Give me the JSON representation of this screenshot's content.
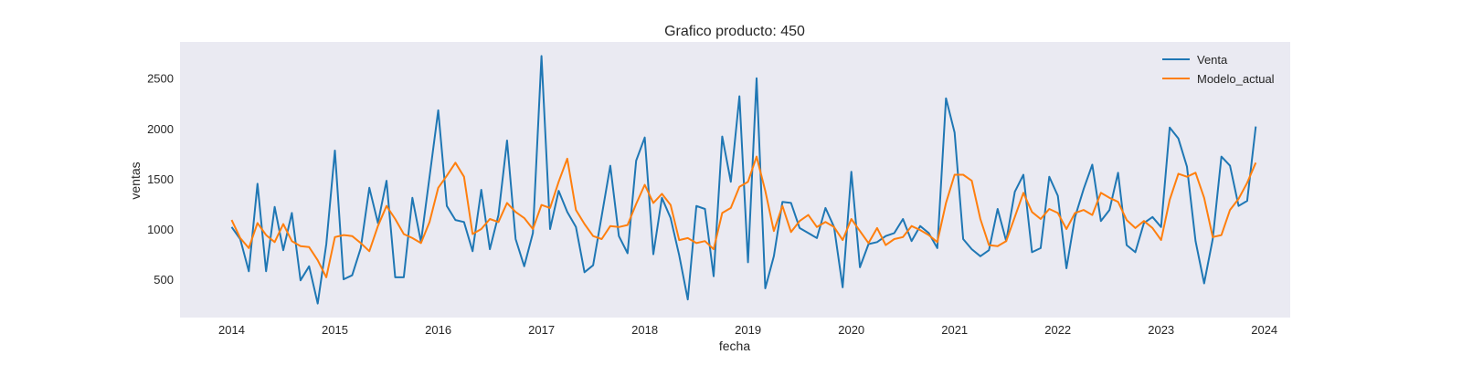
{
  "chart_data": {
    "type": "line",
    "title": "Grafico producto: 450",
    "xlabel": "fecha",
    "ylabel": "ventas",
    "xlim": [
      "2013-07-01",
      "2024-04-01"
    ],
    "ylim": [
      120,
      2860
    ],
    "x_ticks": [
      "2014",
      "2015",
      "2016",
      "2017",
      "2018",
      "2019",
      "2020",
      "2021",
      "2022",
      "2023",
      "2024"
    ],
    "y_ticks": [
      500,
      1000,
      1500,
      2000,
      2500
    ],
    "grid": false,
    "background": "#eaeaf2",
    "legend_position": "upper right",
    "x": [
      "2014-01",
      "2014-02",
      "2014-03",
      "2014-04",
      "2014-05",
      "2014-06",
      "2014-07",
      "2014-08",
      "2014-09",
      "2014-10",
      "2014-11",
      "2014-12",
      "2015-01",
      "2015-02",
      "2015-03",
      "2015-04",
      "2015-05",
      "2015-06",
      "2015-07",
      "2015-08",
      "2015-09",
      "2015-10",
      "2015-11",
      "2015-12",
      "2016-01",
      "2016-02",
      "2016-03",
      "2016-04",
      "2016-05",
      "2016-06",
      "2016-07",
      "2016-08",
      "2016-09",
      "2016-10",
      "2016-11",
      "2016-12",
      "2017-01",
      "2017-02",
      "2017-03",
      "2017-04",
      "2017-05",
      "2017-06",
      "2017-07",
      "2017-08",
      "2017-09",
      "2017-10",
      "2017-11",
      "2017-12",
      "2018-01",
      "2018-02",
      "2018-03",
      "2018-04",
      "2018-05",
      "2018-06",
      "2018-07",
      "2018-08",
      "2018-09",
      "2018-10",
      "2018-11",
      "2018-12",
      "2019-01",
      "2019-02",
      "2019-03",
      "2019-04",
      "2019-05",
      "2019-06",
      "2019-07",
      "2019-08",
      "2019-09",
      "2019-10",
      "2019-11",
      "2019-12",
      "2020-01",
      "2020-02",
      "2020-03",
      "2020-04",
      "2020-05",
      "2020-06",
      "2020-07",
      "2020-08",
      "2020-09",
      "2020-10",
      "2020-11",
      "2020-12",
      "2021-01",
      "2021-02",
      "2021-03",
      "2021-04",
      "2021-05",
      "2021-06",
      "2021-07",
      "2021-08",
      "2021-09",
      "2021-10",
      "2021-11",
      "2021-12",
      "2022-01",
      "2022-02",
      "2022-03",
      "2022-04",
      "2022-05",
      "2022-06",
      "2022-07",
      "2022-08",
      "2022-09",
      "2022-10",
      "2022-11",
      "2022-12",
      "2023-01",
      "2023-02",
      "2023-03",
      "2023-04",
      "2023-05",
      "2023-06",
      "2023-07",
      "2023-08",
      "2023-09",
      "2023-10",
      "2023-11",
      "2023-12"
    ],
    "series": [
      {
        "name": "Venta",
        "color": "#1f77b4",
        "values": [
          1020,
          900,
          580,
          1450,
          580,
          1220,
          790,
          1160,
          490,
          630,
          260,
          850,
          1780,
          500,
          540,
          810,
          1410,
          1060,
          1480,
          520,
          520,
          1310,
          870,
          1520,
          2180,
          1230,
          1090,
          1070,
          780,
          1390,
          800,
          1140,
          1880,
          900,
          630,
          960,
          2720,
          1000,
          1380,
          1170,
          1020,
          570,
          640,
          1130,
          1630,
          930,
          760,
          1680,
          1910,
          750,
          1310,
          1110,
          740,
          300,
          1230,
          1200,
          530,
          1920,
          1470,
          2320,
          670,
          2500,
          410,
          730,
          1270,
          1260,
          1010,
          960,
          910,
          1210,
          1020,
          420,
          1570,
          620,
          850,
          870,
          930,
          960,
          1100,
          880,
          1030,
          960,
          810,
          2300,
          1960,
          900,
          800,
          730,
          790,
          1200,
          880,
          1370,
          1540,
          770,
          810,
          1520,
          1330,
          610,
          1120,
          1400,
          1640,
          1080,
          1190,
          1560,
          840,
          770,
          1060,
          1120,
          1020,
          2010,
          1900,
          1620,
          880,
          460,
          900,
          1720,
          1630,
          1230,
          1280,
          2020
        ]
      },
      {
        "name": "Modelo_actual",
        "color": "#ff7f0e",
        "values": [
          1090,
          910,
          810,
          1060,
          940,
          870,
          1050,
          880,
          830,
          820,
          690,
          520,
          920,
          940,
          930,
          860,
          780,
          1030,
          1230,
          1100,
          950,
          910,
          860,
          1070,
          1410,
          1530,
          1660,
          1520,
          950,
          1000,
          1100,
          1070,
          1260,
          1170,
          1110,
          1000,
          1240,
          1210,
          1470,
          1700,
          1190,
          1050,
          930,
          900,
          1030,
          1020,
          1040,
          1250,
          1440,
          1260,
          1350,
          1240,
          890,
          910,
          860,
          880,
          800,
          1160,
          1210,
          1420,
          1470,
          1720,
          1380,
          980,
          1230,
          970,
          1080,
          1140,
          1020,
          1070,
          1020,
          890,
          1100,
          980,
          860,
          1010,
          840,
          900,
          920,
          1030,
          990,
          940,
          870,
          1260,
          1540,
          1540,
          1480,
          1100,
          840,
          830,
          880,
          1120,
          1360,
          1170,
          1100,
          1200,
          1160,
          1000,
          1160,
          1190,
          1140,
          1360,
          1310,
          1270,
          1090,
          1010,
          1080,
          1010,
          890,
          1290,
          1550,
          1520,
          1560,
          1310,
          920,
          940,
          1190,
          1300,
          1460,
          1660
        ]
      }
    ]
  }
}
